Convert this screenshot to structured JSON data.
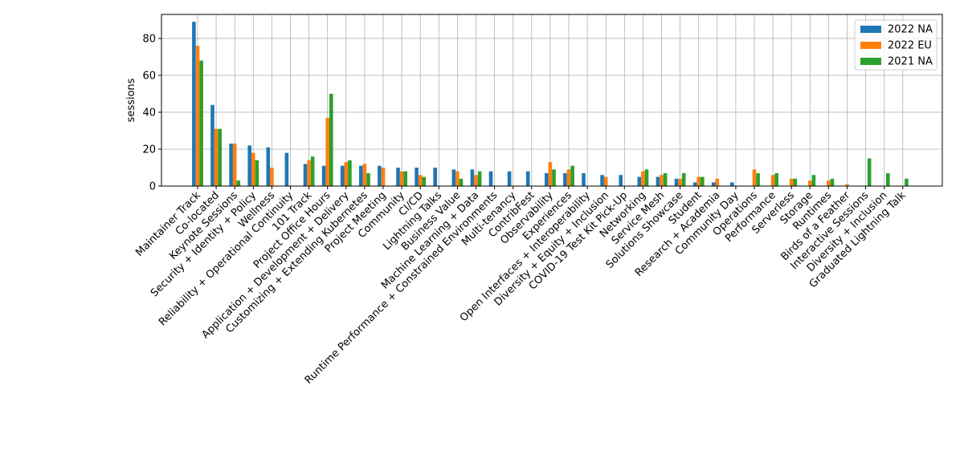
{
  "chart_data": {
    "type": "bar",
    "title": "",
    "xlabel": "",
    "ylabel": "sessions",
    "ylim": [
      0,
      93
    ],
    "yticks": [
      0,
      20,
      40,
      60,
      80
    ],
    "grid": true,
    "legend_position": "top-right",
    "categories": [
      "Maintainer Track",
      "Co-located",
      "Keynote Sessions",
      "Security + Identity + Policy",
      "Wellness",
      "Reliability + Operational Continuity",
      "101 Track",
      "Project Office Hours",
      "Application + Development + Delivery",
      "Customizing + Extending Kubernetes",
      "Project Meeting",
      "Community",
      "CI/CD",
      "Lightning Talks",
      "Business Value",
      "Machine Learning + Data",
      "Runtime Performance + Constrained Environments",
      "Multi-tenancy",
      "ContribFest",
      "Observability",
      "Experiences",
      "Open Interfaces + Interoperability",
      "Diversity + Equity + Inclusion",
      "COVID-19 Test Kit Pick-Up",
      "Networking",
      "Service Mesh",
      "Solutions Showcase",
      "Student",
      "Research + Academia",
      "Community Day",
      "Operations",
      "Performance",
      "Serverless",
      "Storage",
      "Runtimes",
      "Birds of a Feather",
      "Interactive Sessions",
      "Diversity + Inclusion",
      "Graduated Lightning Talk"
    ],
    "series": [
      {
        "name": "2022 NA",
        "color": "#1f77b4",
        "values": [
          89,
          44,
          23,
          22,
          21,
          18,
          12,
          11,
          11,
          11,
          11,
          10,
          10,
          10,
          9,
          9,
          8,
          8,
          8,
          7,
          7,
          7,
          6,
          6,
          5,
          5,
          4,
          2,
          2,
          2,
          0,
          0,
          0,
          0,
          0,
          0,
          0,
          0,
          0
        ]
      },
      {
        "name": "2022 EU",
        "color": "#ff7f0e",
        "values": [
          76,
          31,
          23,
          18,
          10,
          0,
          14,
          37,
          13,
          12,
          10,
          8,
          6,
          0,
          8,
          6,
          0,
          0,
          0,
          13,
          9,
          0,
          5,
          0,
          8,
          6,
          4,
          5,
          4,
          0,
          9,
          6,
          4,
          3,
          3,
          1,
          0,
          0,
          0
        ]
      },
      {
        "name": "2021 NA",
        "color": "#2ca02c",
        "values": [
          68,
          31,
          3,
          14,
          0,
          0,
          16,
          50,
          14,
          7,
          0,
          8,
          5,
          0,
          4,
          8,
          0,
          0,
          0,
          9,
          11,
          0,
          0,
          0,
          9,
          7,
          7,
          5,
          0,
          0,
          7,
          7,
          4,
          6,
          4,
          0,
          15,
          7,
          4
        ]
      }
    ]
  }
}
